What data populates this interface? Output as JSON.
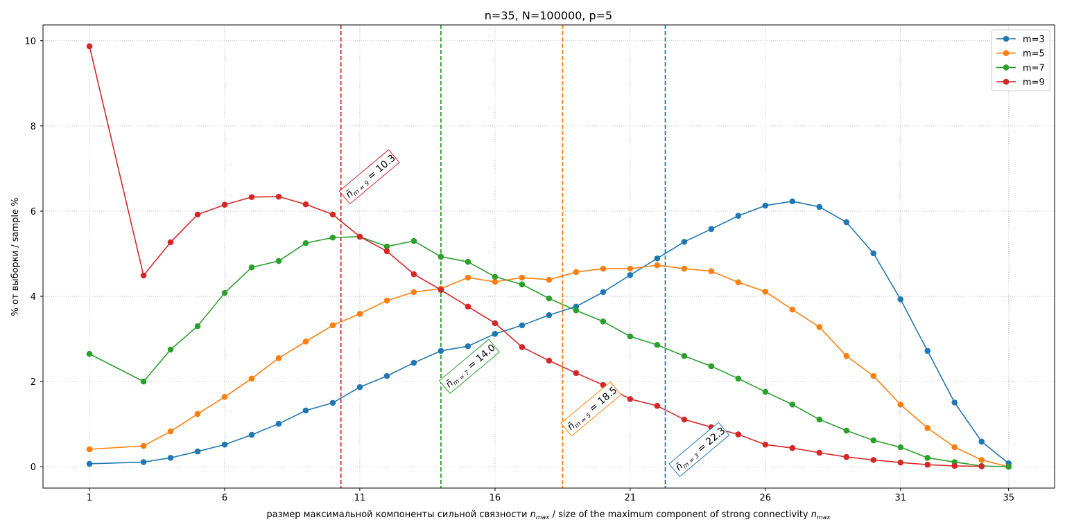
{
  "chart_data": {
    "type": "line",
    "title": "n=35, N=100000, p=5",
    "xlabel": "размер максимальной компоненты сильной связности n_max / size of the maximum component of strong connectivity n_max",
    "xlabel_parts": {
      "ru": "размер максимальной компоненты сильной связности ",
      "sep": " / size of the maximum component of strong connectivity ",
      "sym": "n",
      "sub": "max"
    },
    "ylabel": "% от выборки / sample %",
    "xlim": [
      -0.72,
      36.7
    ],
    "ylim": [
      -0.5,
      10.37
    ],
    "xticks": [
      1,
      6,
      11,
      16,
      21,
      26,
      31,
      35
    ],
    "yticks": [
      0,
      2,
      4,
      6,
      8,
      10
    ],
    "grid": true,
    "legend_position": "top-right",
    "series": [
      {
        "name": "m=3",
        "color": "#1f77b4",
        "x": [
          1,
          3,
          4,
          5,
          6,
          7,
          8,
          9,
          10,
          11,
          12,
          13,
          14,
          15,
          16,
          17,
          18,
          19,
          20,
          21,
          22,
          23,
          24,
          25,
          26,
          27,
          28,
          29,
          30,
          31,
          32,
          33,
          34,
          35
        ],
        "values": [
          0.07,
          0.11,
          0.21,
          0.36,
          0.52,
          0.75,
          1.01,
          1.32,
          1.5,
          1.87,
          2.13,
          2.44,
          2.72,
          2.83,
          3.12,
          3.32,
          3.56,
          3.76,
          4.1,
          4.5,
          4.89,
          5.28,
          5.58,
          5.89,
          6.13,
          6.23,
          6.1,
          5.74,
          5.01,
          3.93,
          2.72,
          1.51,
          0.59,
          0.08
        ],
        "mean": 22.3,
        "annotation": "= 22.3",
        "ann_sub": "m = 3"
      },
      {
        "name": "m=5",
        "color": "#ff7f0e",
        "x": [
          1,
          3,
          4,
          5,
          6,
          7,
          8,
          9,
          10,
          11,
          12,
          13,
          14,
          15,
          16,
          17,
          18,
          19,
          20,
          21,
          22,
          23,
          24,
          25,
          26,
          27,
          28,
          29,
          30,
          31,
          32,
          33,
          34,
          35
        ],
        "values": [
          0.41,
          0.49,
          0.83,
          1.24,
          1.64,
          2.07,
          2.55,
          2.94,
          3.32,
          3.59,
          3.9,
          4.1,
          4.18,
          4.44,
          4.34,
          4.44,
          4.39,
          4.57,
          4.65,
          4.65,
          4.73,
          4.65,
          4.59,
          4.33,
          4.11,
          3.69,
          3.28,
          2.6,
          2.13,
          1.46,
          0.91,
          0.46,
          0.16,
          0.0
        ],
        "mean": 18.5,
        "annotation": "= 18.5",
        "ann_sub": "m = 5"
      },
      {
        "name": "m=7",
        "color": "#2ca02c",
        "x": [
          1,
          3,
          4,
          5,
          6,
          7,
          8,
          9,
          10,
          11,
          12,
          13,
          14,
          15,
          16,
          17,
          18,
          19,
          20,
          21,
          22,
          23,
          24,
          25,
          26,
          27,
          28,
          29,
          30,
          31,
          32,
          33,
          34,
          35
        ],
        "values": [
          2.65,
          2.0,
          2.75,
          3.3,
          4.08,
          4.68,
          4.83,
          5.25,
          5.38,
          5.4,
          5.17,
          5.3,
          4.93,
          4.81,
          4.46,
          4.28,
          3.95,
          3.67,
          3.41,
          3.06,
          2.86,
          2.6,
          2.36,
          2.07,
          1.76,
          1.46,
          1.11,
          0.85,
          0.62,
          0.46,
          0.21,
          0.11,
          0.02,
          0.0
        ],
        "mean": 14.0,
        "annotation": "= 14.0",
        "ann_sub": "m = 7"
      },
      {
        "name": "m=9",
        "color": "#d62728",
        "x": [
          1,
          3,
          4,
          5,
          6,
          7,
          8,
          9,
          10,
          11,
          12,
          13,
          14,
          15,
          16,
          17,
          18,
          19,
          20,
          21,
          22,
          23,
          24,
          25,
          26,
          27,
          28,
          29,
          30,
          31,
          32,
          33,
          34
        ],
        "values": [
          9.87,
          4.49,
          5.27,
          5.92,
          6.15,
          6.33,
          6.34,
          6.16,
          5.92,
          5.4,
          5.06,
          4.52,
          4.15,
          3.76,
          3.37,
          2.81,
          2.49,
          2.2,
          1.92,
          1.59,
          1.43,
          1.11,
          0.93,
          0.76,
          0.52,
          0.44,
          0.33,
          0.23,
          0.16,
          0.1,
          0.05,
          0.02,
          0.01
        ],
        "mean": 10.3,
        "annotation": "= 10.3",
        "ann_sub": "m = 9"
      }
    ]
  }
}
